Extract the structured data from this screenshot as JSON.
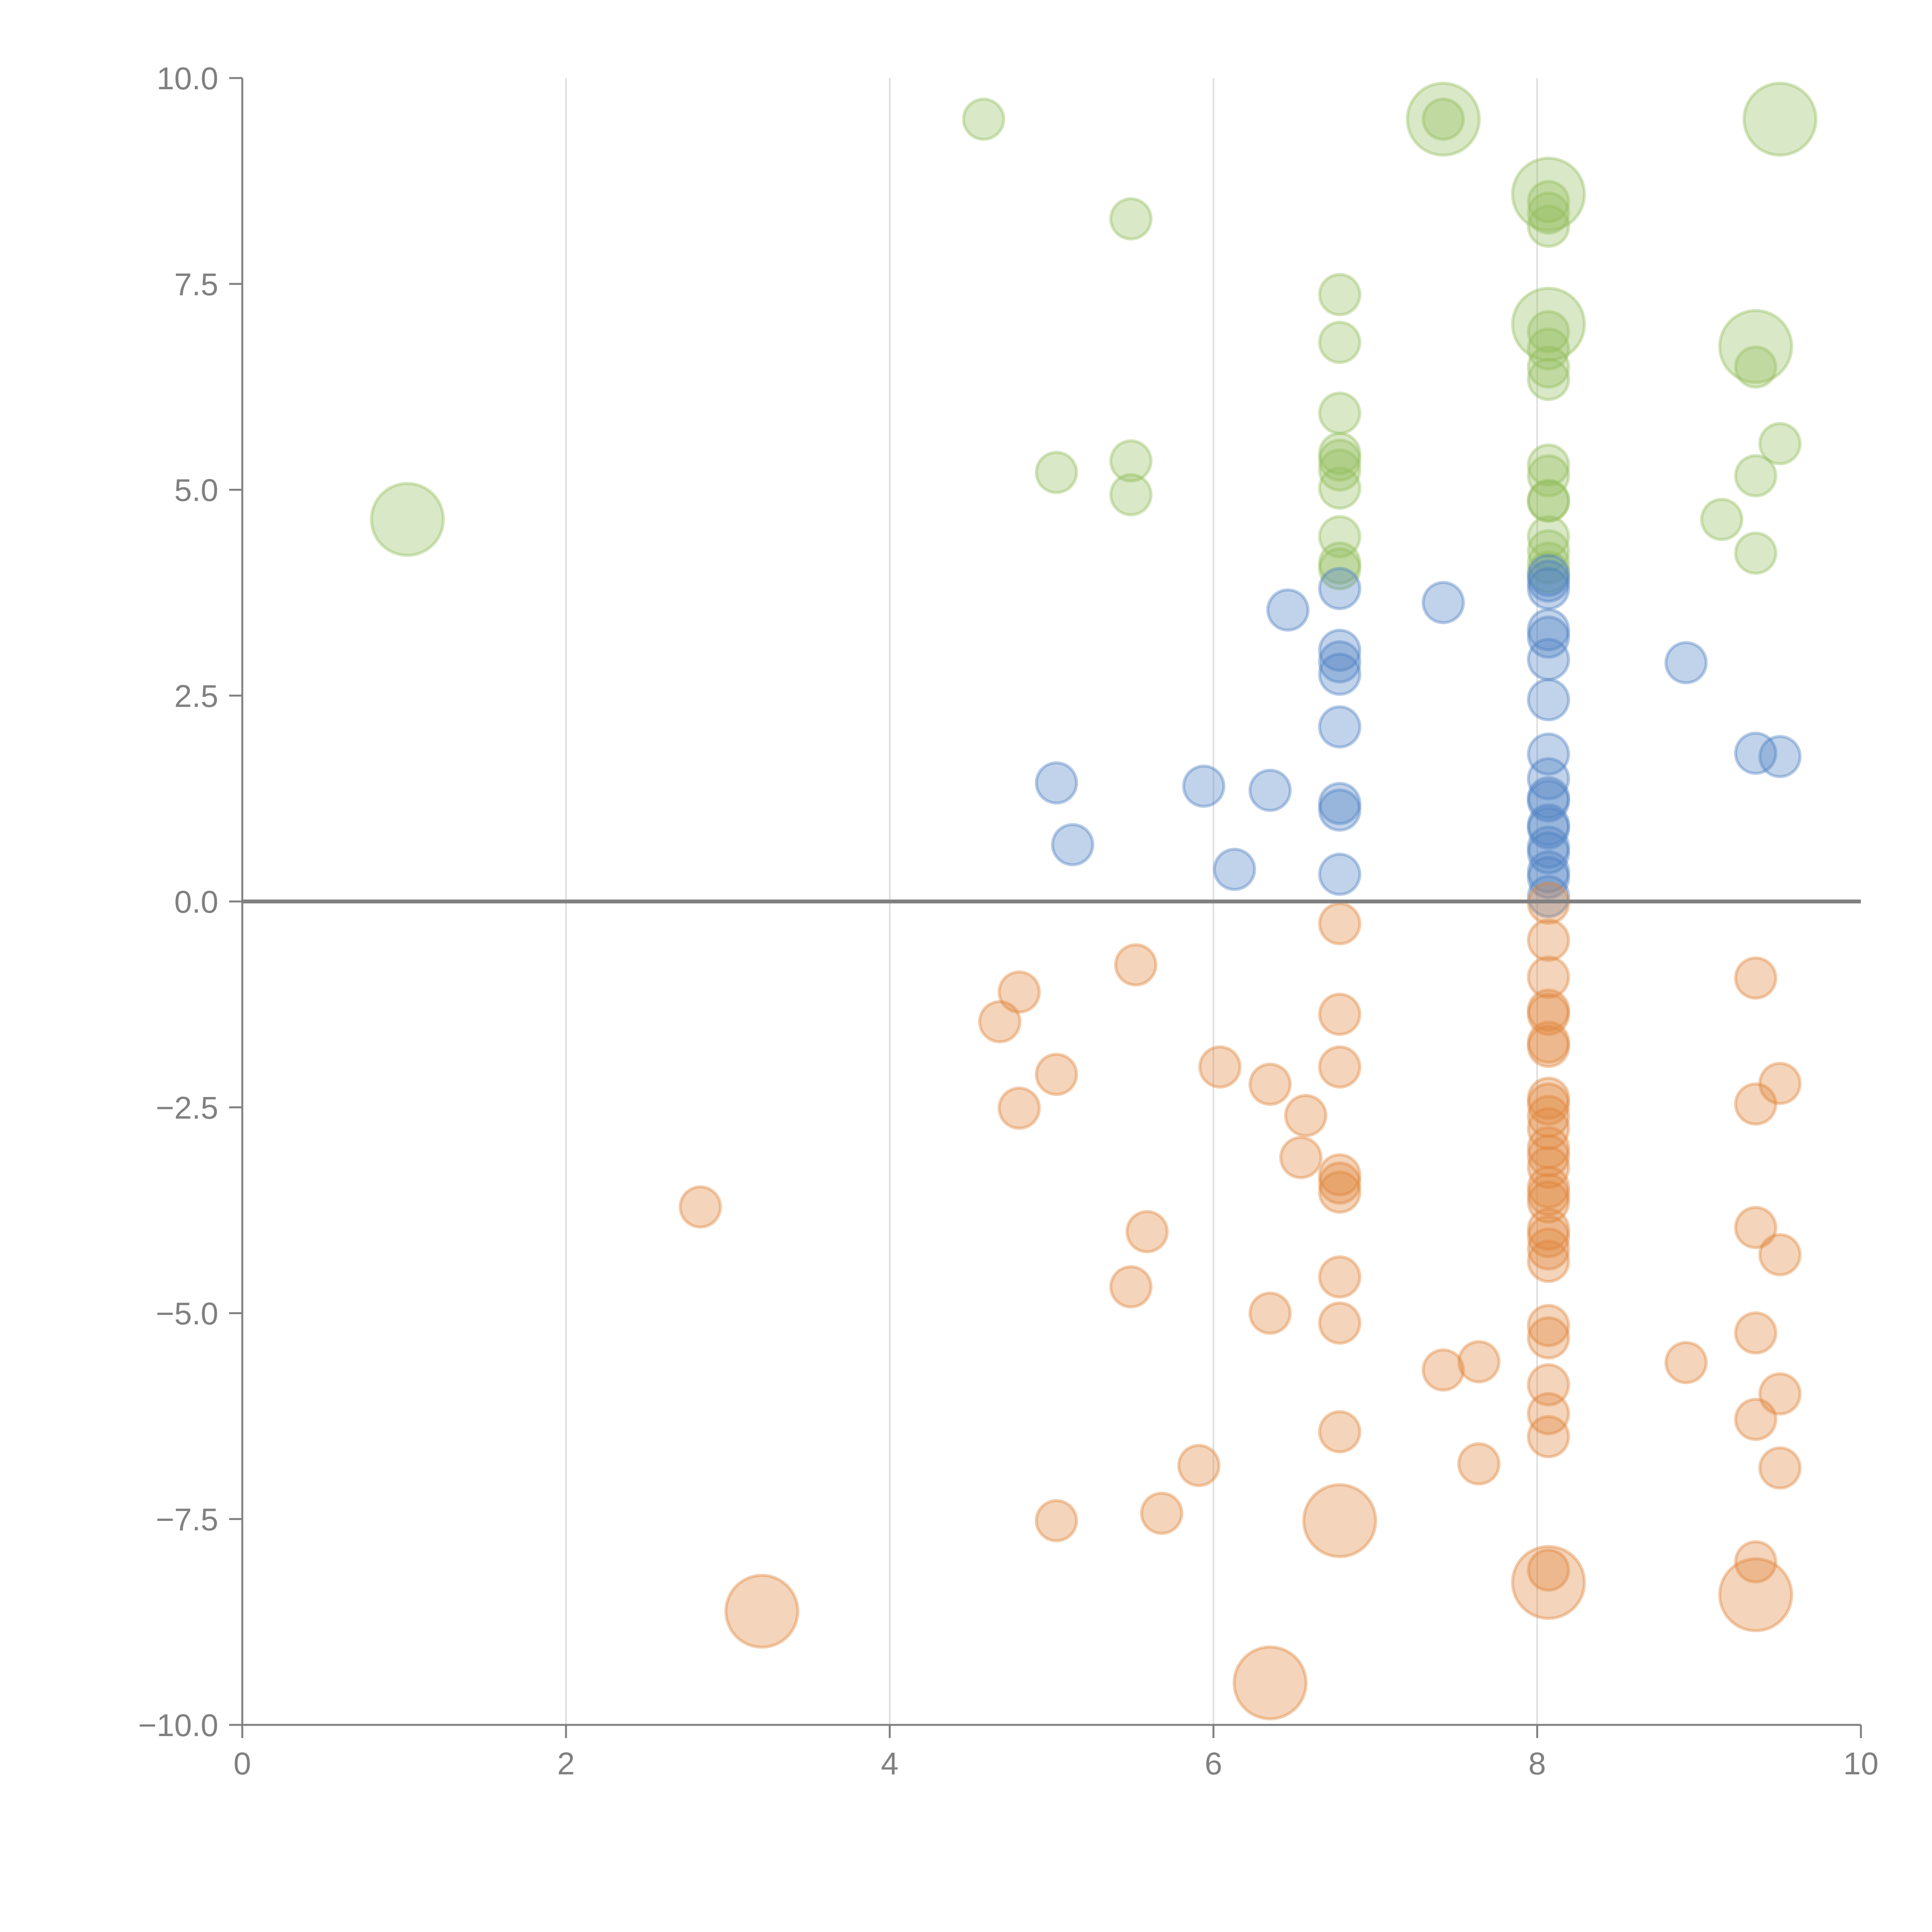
{
  "chart_data": {
    "type": "scatter",
    "title": "",
    "xlabel": "",
    "ylabel": "",
    "xlim": [
      0,
      10
    ],
    "ylim": [
      -10,
      10
    ],
    "grid": "vertical",
    "x_ticks": [
      "0",
      "2",
      "4",
      "6",
      "8",
      "10"
    ],
    "y_ticks": [
      "10.0",
      "7.5",
      "5.0",
      "2.5",
      "0.0",
      "−2.5",
      "−5.0",
      "−7.5",
      "−10.0"
    ],
    "point_format": "[x, y, size]",
    "series": [
      {
        "name": "green",
        "color": "#93bd5c",
        "points": [
          [
            4.58,
            9.5,
            1
          ],
          [
            7.42,
            9.5,
            2
          ],
          [
            7.42,
            9.5,
            1
          ],
          [
            9.5,
            9.5,
            2
          ],
          [
            8.07,
            8.59,
            2
          ],
          [
            8.07,
            8.5,
            1
          ],
          [
            8.07,
            8.36,
            1
          ],
          [
            8.07,
            8.2,
            1
          ],
          [
            5.49,
            8.29,
            1
          ],
          [
            6.78,
            7.37,
            1
          ],
          [
            6.78,
            6.79,
            1
          ],
          [
            8.07,
            7.01,
            2
          ],
          [
            8.07,
            6.92,
            1
          ],
          [
            8.07,
            6.71,
            1
          ],
          [
            8.07,
            6.49,
            1
          ],
          [
            8.07,
            6.34,
            1
          ],
          [
            9.35,
            6.74,
            2
          ],
          [
            9.35,
            6.49,
            1
          ],
          [
            6.78,
            5.93,
            1
          ],
          [
            9.5,
            5.56,
            1
          ],
          [
            6.78,
            5.44,
            1
          ],
          [
            6.78,
            5.36,
            1
          ],
          [
            6.78,
            5.24,
            1
          ],
          [
            6.78,
            5.02,
            1
          ],
          [
            5.49,
            5.35,
            1
          ],
          [
            5.49,
            4.94,
            1
          ],
          [
            5.03,
            5.21,
            1
          ],
          [
            8.07,
            5.3,
            1
          ],
          [
            8.07,
            5.17,
            1
          ],
          [
            8.07,
            4.87,
            1
          ],
          [
            8.07,
            4.86,
            1
          ],
          [
            9.35,
            5.17,
            1
          ],
          [
            1.02,
            4.64,
            2
          ],
          [
            9.14,
            4.64,
            1
          ],
          [
            9.35,
            4.23,
            1
          ],
          [
            6.78,
            4.43,
            1
          ],
          [
            6.78,
            4.11,
            1
          ],
          [
            6.78,
            4.04,
            1
          ],
          [
            8.07,
            4.43,
            1
          ],
          [
            8.07,
            4.26,
            1
          ],
          [
            8.07,
            4.11,
            1
          ],
          [
            8.07,
            4.0,
            1
          ]
        ]
      },
      {
        "name": "blue",
        "color": "#4e80c4",
        "points": [
          [
            8.07,
            3.96,
            1
          ],
          [
            8.07,
            3.89,
            1
          ],
          [
            8.07,
            3.8,
            1
          ],
          [
            6.78,
            3.8,
            1
          ],
          [
            6.46,
            3.54,
            1
          ],
          [
            7.42,
            3.63,
            1
          ],
          [
            6.78,
            3.05,
            1
          ],
          [
            6.78,
            2.91,
            1
          ],
          [
            6.78,
            2.76,
            1
          ],
          [
            8.07,
            3.3,
            1
          ],
          [
            8.07,
            3.21,
            1
          ],
          [
            8.07,
            2.94,
            1
          ],
          [
            8.92,
            2.9,
            1
          ],
          [
            6.78,
            2.12,
            1
          ],
          [
            8.07,
            2.45,
            1
          ],
          [
            8.07,
            1.79,
            1
          ],
          [
            9.35,
            1.8,
            1
          ],
          [
            9.5,
            1.76,
            1
          ],
          [
            5.03,
            1.44,
            1
          ],
          [
            5.94,
            1.4,
            1
          ],
          [
            6.35,
            1.35,
            1
          ],
          [
            6.78,
            1.19,
            1
          ],
          [
            6.78,
            1.11,
            1
          ],
          [
            8.07,
            1.49,
            1
          ],
          [
            8.07,
            1.26,
            1
          ],
          [
            8.07,
            1.22,
            1
          ],
          [
            5.13,
            0.69,
            1
          ],
          [
            8.07,
            0.93,
            1
          ],
          [
            8.07,
            0.89,
            1
          ],
          [
            8.07,
            0.66,
            1
          ],
          [
            8.07,
            0.59,
            1
          ],
          [
            8.07,
            0.36,
            1
          ],
          [
            8.07,
            0.29,
            1
          ],
          [
            6.13,
            0.39,
            1
          ],
          [
            6.78,
            0.33,
            1
          ],
          [
            8.07,
            0.06,
            1
          ]
        ]
      },
      {
        "name": "orange",
        "color": "#e0843a",
        "points": [
          [
            8.07,
            -0.02,
            1
          ],
          [
            8.07,
            -0.47,
            1
          ],
          [
            8.07,
            -0.92,
            1
          ],
          [
            6.78,
            -0.27,
            1
          ],
          [
            5.52,
            -0.77,
            1
          ],
          [
            4.8,
            -1.1,
            1
          ],
          [
            4.68,
            -1.46,
            1
          ],
          [
            6.78,
            -1.37,
            1
          ],
          [
            9.35,
            -0.93,
            1
          ],
          [
            8.07,
            -1.32,
            1
          ],
          [
            8.07,
            -1.37,
            1
          ],
          [
            8.07,
            -1.71,
            1
          ],
          [
            8.07,
            -1.76,
            1
          ],
          [
            5.03,
            -2.1,
            1
          ],
          [
            6.04,
            -2.01,
            1
          ],
          [
            6.78,
            -2.01,
            1
          ],
          [
            6.35,
            -2.22,
            1
          ],
          [
            6.57,
            -2.6,
            1
          ],
          [
            4.8,
            -2.51,
            1
          ],
          [
            9.5,
            -2.21,
            1
          ],
          [
            9.35,
            -2.46,
            1
          ],
          [
            8.07,
            -2.39,
            1
          ],
          [
            8.07,
            -2.46,
            1
          ],
          [
            8.07,
            -2.61,
            1
          ],
          [
            8.07,
            -2.76,
            1
          ],
          [
            8.07,
            -2.99,
            1
          ],
          [
            8.07,
            -3.09,
            1
          ],
          [
            8.07,
            -3.23,
            1
          ],
          [
            6.54,
            -3.11,
            1
          ],
          [
            6.78,
            -3.32,
            1
          ],
          [
            6.78,
            -3.42,
            1
          ],
          [
            6.78,
            -3.53,
            1
          ],
          [
            8.07,
            -3.47,
            1
          ],
          [
            8.07,
            -3.56,
            1
          ],
          [
            8.07,
            -3.65,
            1
          ],
          [
            8.07,
            -3.98,
            1
          ],
          [
            8.07,
            -4.07,
            1
          ],
          [
            8.07,
            -4.22,
            1
          ],
          [
            8.07,
            -4.37,
            1
          ],
          [
            2.83,
            -3.71,
            1
          ],
          [
            5.59,
            -4.01,
            1
          ],
          [
            9.35,
            -3.96,
            1
          ],
          [
            9.5,
            -4.29,
            1
          ],
          [
            6.78,
            -4.56,
            1
          ],
          [
            5.49,
            -4.68,
            1
          ],
          [
            6.35,
            -5.0,
            1
          ],
          [
            6.78,
            -5.12,
            1
          ],
          [
            8.07,
            -5.15,
            1
          ],
          [
            8.07,
            -5.3,
            1
          ],
          [
            9.35,
            -5.24,
            1
          ],
          [
            7.42,
            -5.69,
            1
          ],
          [
            7.64,
            -5.59,
            1
          ],
          [
            8.92,
            -5.6,
            1
          ],
          [
            8.07,
            -5.87,
            1
          ],
          [
            9.5,
            -5.98,
            1
          ],
          [
            8.07,
            -6.22,
            1
          ],
          [
            8.07,
            -6.5,
            1
          ],
          [
            9.35,
            -6.29,
            1
          ],
          [
            6.78,
            -6.44,
            1
          ],
          [
            5.91,
            -6.85,
            1
          ],
          [
            7.64,
            -6.83,
            1
          ],
          [
            9.5,
            -6.88,
            1
          ],
          [
            5.68,
            -7.43,
            1
          ],
          [
            5.03,
            -7.52,
            1
          ],
          [
            6.78,
            -7.52,
            2
          ],
          [
            8.07,
            -8.12,
            1
          ],
          [
            8.07,
            -8.27,
            2
          ],
          [
            9.35,
            -8.02,
            1
          ],
          [
            9.35,
            -8.42,
            2
          ],
          [
            3.21,
            -8.62,
            2
          ],
          [
            6.35,
            -9.49,
            2
          ]
        ]
      }
    ]
  },
  "colors": {
    "axis": "#808080",
    "grid": "#dddddd",
    "zero_line": "#808080"
  }
}
